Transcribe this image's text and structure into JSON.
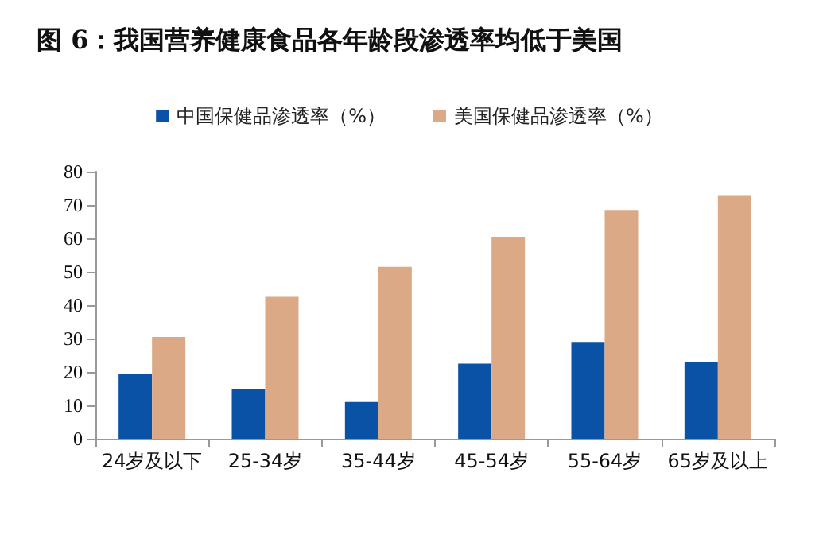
{
  "chart_data": {
    "type": "bar",
    "title": "图 6：我国营养健康食品各年龄段渗透率均低于美国",
    "categories": [
      "24岁及以下",
      "25-34岁",
      "35-44岁",
      "45-54岁",
      "55-64岁",
      "65岁及以上"
    ],
    "series": [
      {
        "name": "中国保健品渗透率（%）",
        "color": "#0a52a5",
        "values": [
          19.5,
          15,
          11,
          22.5,
          29,
          23
        ]
      },
      {
        "name": "美国保健品渗透率（%）",
        "color": "#dba985",
        "values": [
          30.5,
          42.5,
          51.5,
          60.5,
          68.5,
          73
        ]
      }
    ],
    "ylim": [
      0,
      80
    ],
    "yticks": [
      0,
      10,
      20,
      30,
      40,
      50,
      60,
      70,
      80
    ],
    "grid": false,
    "legend": "top"
  }
}
